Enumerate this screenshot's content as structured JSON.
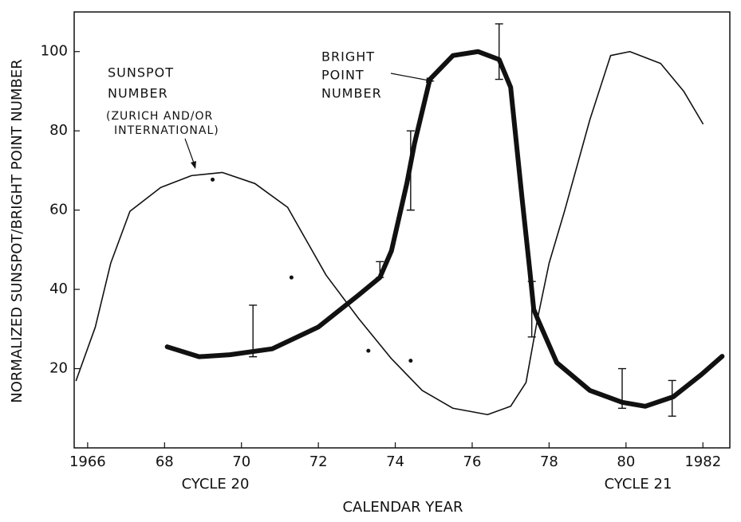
{
  "chart_data": {
    "type": "line",
    "y_label": "NORMALIZED SUNSPOT/BRIGHT POINT NUMBER",
    "x_label": "CALENDAR YEAR",
    "cycle_labels": [
      "CYCLE 20",
      "CYCLE 21"
    ],
    "annotations": [
      {
        "lines": [
          "SUNSPOT",
          "NUMBER",
          "(ZURICH AND/OR",
          "INTERNATIONAL)"
        ]
      },
      {
        "lines": [
          "BRIGHT",
          "POINT",
          "NUMBER"
        ]
      }
    ],
    "xlim": [
      1965.65,
      1982.7
    ],
    "ylim": [
      0,
      110
    ],
    "xticks": [
      {
        "value": 1966,
        "label": "1966"
      },
      {
        "value": 1968,
        "label": "68"
      },
      {
        "value": 1970,
        "label": "70"
      },
      {
        "value": 1972,
        "label": "72"
      },
      {
        "value": 1974,
        "label": "74"
      },
      {
        "value": 1976,
        "label": "76"
      },
      {
        "value": 1978,
        "label": "78"
      },
      {
        "value": 1980,
        "label": "80"
      },
      {
        "value": 1982,
        "label": "1982"
      }
    ],
    "yticks": [
      20,
      40,
      60,
      80,
      100
    ],
    "series": [
      {
        "color": "#111111",
        "width": 1.6,
        "x": [
          1965.7,
          1966.2,
          1966.6,
          1967.1,
          1967.9,
          1968.7,
          1969.5,
          1970.35,
          1971.2,
          1972.2,
          1973.05,
          1973.9,
          1974.7,
          1975.5,
          1976.4,
          1977.0,
          1977.4,
          1977.7,
          1978.0,
          1978.4,
          1979.06,
          1979.6,
          1980.1,
          1980.9,
          1981.5,
          1982.0
        ],
        "values": [
          17,
          30.5,
          46.6,
          59.7,
          65.7,
          68.7,
          69.5,
          66.7,
          60.7,
          43.6,
          32.6,
          22.5,
          14.5,
          10,
          8.4,
          10.5,
          16.5,
          32.6,
          46.6,
          59.7,
          82.8,
          99,
          100,
          97,
          90,
          81.8
        ]
      },
      {
        "color": "#111111",
        "width": 6,
        "x": [
          1968.07,
          1968.9,
          1969.7,
          1970.8,
          1972.0,
          1973.05,
          1973.6,
          1973.9,
          1974.3,
          1974.5,
          1974.9,
          1975.5,
          1976.15,
          1976.7,
          1977.0,
          1977.3,
          1977.5,
          1977.6,
          1977.7,
          1978.2,
          1979.06,
          1979.9,
          1980.5,
          1981.23,
          1981.96,
          1982.5
        ],
        "values": [
          25.5,
          23,
          23.5,
          25,
          30.5,
          38.6,
          43,
          49.7,
          66.7,
          76.8,
          93,
          99,
          100,
          98,
          91,
          62.7,
          44.6,
          35,
          32.6,
          21.5,
          14.5,
          11.5,
          10.5,
          12.9,
          18.5,
          23.1
        ]
      }
    ],
    "error_bars": {
      "x": [
        1970.3,
        1973.6,
        1974.4,
        1976.7,
        1977.55,
        1979.9,
        1981.2
      ],
      "low": [
        23,
        43,
        60,
        93,
        28,
        10,
        8
      ],
      "high": [
        36,
        47,
        80,
        107,
        42,
        20,
        17
      ]
    },
    "points": {
      "x": [
        1969.25,
        1971.3,
        1973.3,
        1974.4
      ],
      "values": [
        67.7,
        43,
        24.5,
        22
      ]
    }
  }
}
